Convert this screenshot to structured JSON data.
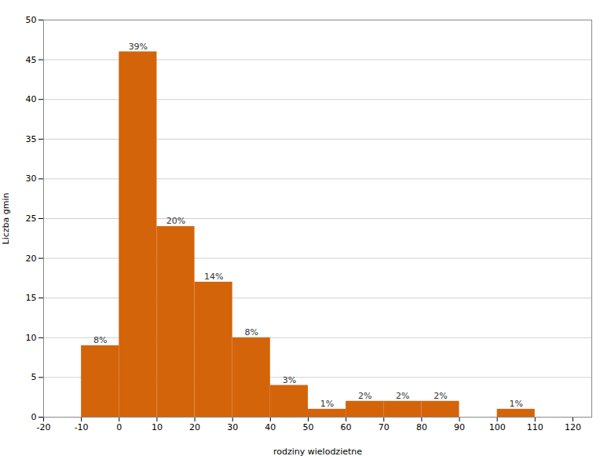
{
  "chart_data": {
    "type": "histogram",
    "bins": [
      -10,
      0,
      10,
      20,
      30,
      40,
      50,
      60,
      70,
      80,
      90,
      100,
      110
    ],
    "values": [
      9,
      46,
      24,
      17,
      10,
      4,
      1,
      2,
      2,
      2,
      0,
      1
    ],
    "value_labels": [
      "8%",
      "39%",
      "20%",
      "14%",
      "8%",
      "3%",
      "1%",
      "2%",
      "2%",
      "2%",
      null,
      "1%"
    ],
    "data_labels": true,
    "color": "#D4640A",
    "xlabel": "rodziny wielodzietne",
    "ylabel": "Liczba gmin",
    "xlim": [
      -20,
      125
    ],
    "ylim": [
      0,
      50
    ],
    "xticks": [
      -20,
      -10,
      0,
      10,
      20,
      30,
      40,
      50,
      60,
      70,
      80,
      90,
      100,
      110,
      120
    ],
    "yticks": [
      0,
      5,
      10,
      15,
      20,
      25,
      30,
      35,
      40,
      45,
      50
    ],
    "grid": true
  }
}
